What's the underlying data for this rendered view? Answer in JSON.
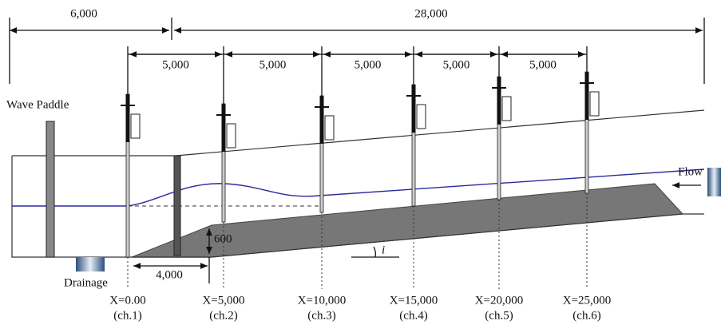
{
  "dimensions": {
    "total_left": "6,000",
    "total_right": "28,000",
    "spacings": [
      "5,000",
      "5,000",
      "5,000",
      "5,000",
      "5,000"
    ],
    "slope_height": "600",
    "toe_length": "4,000"
  },
  "labels": {
    "wave_paddle": "Wave Paddle",
    "flow": "Flow",
    "drainage": "Drainage",
    "slope": "i"
  },
  "gauges": [
    {
      "position": "X=0.00",
      "channel": "(ch.1)"
    },
    {
      "position": "X=5,000",
      "channel": "(ch.2)"
    },
    {
      "position": "X=10,000",
      "channel": "(ch.3)"
    },
    {
      "position": "X=15,000",
      "channel": "(ch.4)"
    },
    {
      "position": "X=20,000",
      "channel": "(ch.5)"
    },
    {
      "position": "X=25,000",
      "channel": "(ch.6)"
    }
  ]
}
